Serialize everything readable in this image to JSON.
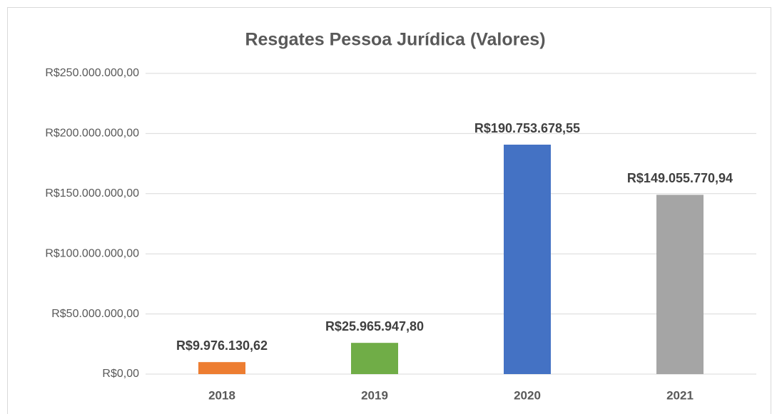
{
  "chart_data": {
    "type": "bar",
    "title": "Resgates Pessoa Jurídica (Valores)",
    "categories": [
      "2018",
      "2019",
      "2020",
      "2021"
    ],
    "values": [
      9976130.62,
      25965947.8,
      190753678.55,
      149055770.94
    ],
    "value_labels": [
      "R$9.976.130,62",
      "R$25.965.947,80",
      "R$190.753.678,55",
      "R$149.055.770,94"
    ],
    "colors": [
      "#ed7d31",
      "#70ad47",
      "#4472c4",
      "#a5a5a5"
    ],
    "ylim": [
      0,
      250000000
    ],
    "yticks": [
      {
        "value": 0,
        "label": "R$0,00"
      },
      {
        "value": 50000000,
        "label": "R$50.000.000,00"
      },
      {
        "value": 100000000,
        "label": "R$100.000.000,00"
      },
      {
        "value": 150000000,
        "label": "R$150.000.000,00"
      },
      {
        "value": 200000000,
        "label": "R$200.000.000,00"
      },
      {
        "value": 250000000,
        "label": "R$250.000.000,00"
      }
    ],
    "grid": true
  }
}
